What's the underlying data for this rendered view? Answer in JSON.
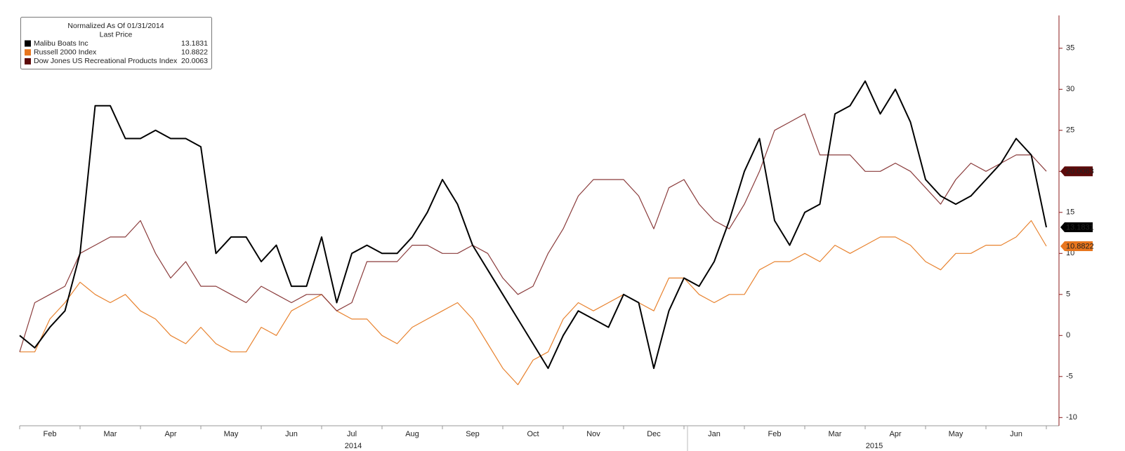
{
  "chart_data": {
    "type": "line",
    "title": "Normalized As Of 01/31/2014",
    "subtitle": "Last Price",
    "categories": [
      null,
      null,
      "Feb",
      null,
      null,
      null,
      "Mar",
      null,
      null,
      null,
      "Apr",
      null,
      null,
      null,
      "May",
      null,
      null,
      null,
      "Jun",
      null,
      null,
      null,
      "Jul",
      null,
      null,
      null,
      "Aug",
      null,
      null,
      null,
      "Sep",
      null,
      null,
      null,
      "Oct",
      null,
      null,
      null,
      "Nov",
      null,
      null,
      null,
      "Dec",
      null,
      null,
      null,
      "Jan",
      null,
      null,
      null,
      "Feb",
      null,
      null,
      null,
      "Mar",
      null,
      null,
      null,
      "Apr",
      null,
      null,
      null,
      "May",
      null,
      null,
      null,
      "Jun",
      null,
      null
    ],
    "year_labels": [
      "2014",
      "2015"
    ],
    "series": [
      {
        "name": "Malibu Boats Inc",
        "color": "#000000",
        "tag_color": "#000000",
        "values": [
          0,
          -1.5,
          1,
          3,
          10,
          28,
          28,
          24,
          24,
          25,
          24,
          24,
          23,
          10,
          12,
          12,
          9,
          11,
          6,
          6,
          12,
          4,
          10,
          11,
          10,
          10,
          12,
          15,
          19,
          16,
          11,
          8,
          5,
          2,
          -1,
          -4,
          0,
          3,
          2,
          1,
          5,
          4,
          -4,
          3,
          7,
          6,
          9,
          14,
          20,
          24,
          14,
          11,
          15,
          16,
          27,
          28,
          31,
          27,
          30,
          26,
          19,
          17,
          16,
          17,
          19,
          21,
          24,
          22,
          13.1831
        ]
      },
      {
        "name": "Russell 2000 Index",
        "color": "#e8822e",
        "tag_color": "#e8761e",
        "values": [
          -2,
          -2,
          2,
          4,
          6.5,
          5,
          4,
          5,
          3,
          2,
          0,
          -1,
          1,
          -1,
          -2,
          -2,
          1,
          0,
          3,
          4,
          5,
          3,
          2,
          2,
          0,
          -1,
          1,
          2,
          3,
          4,
          2,
          -1,
          -4,
          -6,
          -3,
          -2,
          2,
          4,
          3,
          4,
          5,
          4,
          3,
          7,
          7,
          5,
          4,
          5,
          5,
          8,
          9,
          9,
          10,
          9,
          11,
          10,
          11,
          12,
          12,
          11,
          9,
          8,
          10,
          10,
          11,
          11,
          12,
          14,
          10.8822
        ]
      },
      {
        "name": "Dow Jones US Recreational Products Index",
        "color": "#8a3b3b",
        "tag_color": "#5c0a0a",
        "values": [
          -2,
          4,
          5,
          6,
          10,
          11,
          12,
          12,
          14,
          10,
          7,
          9,
          6,
          6,
          5,
          4,
          6,
          5,
          4,
          5,
          5,
          3,
          4,
          9,
          9,
          9,
          11,
          11,
          10,
          10,
          11,
          10,
          7,
          5,
          6,
          10,
          13,
          17,
          19,
          19,
          19,
          17,
          13,
          18,
          19,
          16,
          14,
          13,
          16,
          20,
          25,
          26,
          27,
          22,
          22,
          22,
          20,
          20,
          21,
          20,
          18,
          16,
          19,
          21,
          20,
          21,
          22,
          22,
          20.0063
        ]
      }
    ],
    "ylim": [
      -11,
      39
    ],
    "yticks": [
      -10,
      -5,
      0,
      5,
      10,
      15,
      20,
      25,
      30,
      35
    ],
    "axis_color": "#8b1a1a"
  }
}
